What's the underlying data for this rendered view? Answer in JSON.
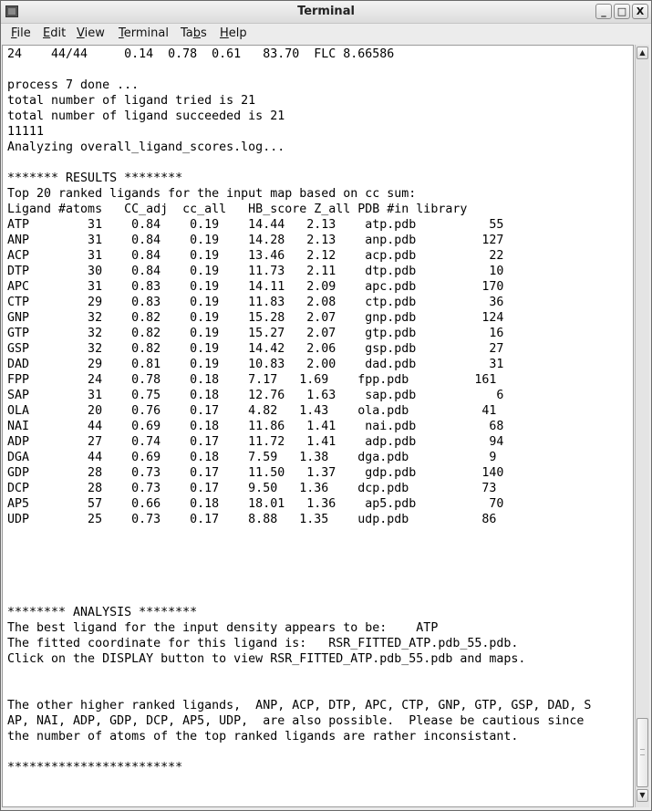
{
  "window": {
    "title": "Terminal",
    "controls": {
      "minimize": "_",
      "maximize": "□",
      "close": "X"
    }
  },
  "menu": {
    "items": [
      {
        "label": "File",
        "mnemonic": "F",
        "rest": "ile"
      },
      {
        "label": "Edit",
        "mnemonic": "E",
        "rest": "dit"
      },
      {
        "label": "View",
        "mnemonic": "V",
        "rest": "iew"
      },
      {
        "label": "Terminal",
        "mnemonic": "T",
        "rest": "erminal"
      },
      {
        "label": "Tabs",
        "pre": "Ta",
        "mnemonic": "b",
        "rest": "s"
      },
      {
        "label": "Help",
        "mnemonic": "H",
        "rest": "elp"
      }
    ]
  },
  "terminal": {
    "lines": [
      "24    44/44     0.14  0.78  0.61   83.70  FLC 8.66586",
      "",
      "process 7 done ...",
      "total number of ligand tried is 21",
      "total number of ligand succeeded is 21",
      "11111",
      "Analyzing overall_ligand_scores.log...",
      "",
      "******* RESULTS ********",
      "Top 20 ranked ligands for the input map based on cc sum:",
      "Ligand #atoms   CC_adj  cc_all   HB_score Z_all PDB #in library",
      "ATP        31    0.84    0.19    14.44   2.13    atp.pdb          55",
      "ANP        31    0.84    0.19    14.28   2.13    anp.pdb         127",
      "ACP        31    0.84    0.19    13.46   2.12    acp.pdb          22",
      "DTP        30    0.84    0.19    11.73   2.11    dtp.pdb          10",
      "APC        31    0.83    0.19    14.11   2.09    apc.pdb         170",
      "CTP        29    0.83    0.19    11.83   2.08    ctp.pdb          36",
      "GNP        32    0.82    0.19    15.28   2.07    gnp.pdb         124",
      "GTP        32    0.82    0.19    15.27   2.07    gtp.pdb          16",
      "GSP        32    0.82    0.19    14.42   2.06    gsp.pdb          27",
      "DAD        29    0.81    0.19    10.83   2.00    dad.pdb          31",
      "FPP        24    0.78    0.18    7.17   1.69    fpp.pdb         161",
      "SAP        31    0.75    0.18    12.76   1.63    sap.pdb           6",
      "OLA        20    0.76    0.17    4.82   1.43    ola.pdb          41",
      "NAI        44    0.69    0.18    11.86   1.41    nai.pdb          68",
      "ADP        27    0.74    0.17    11.72   1.41    adp.pdb          94",
      "DGA        44    0.69    0.18    7.59   1.38    dga.pdb           9",
      "GDP        28    0.73    0.17    11.50   1.37    gdp.pdb         140",
      "DCP        28    0.73    0.17    9.50   1.36    dcp.pdb          73",
      "AP5        57    0.66    0.18    18.01   1.36    ap5.pdb          70",
      "UDP        25    0.73    0.17    8.88   1.35    udp.pdb          86",
      "",
      "",
      "",
      "",
      "",
      "******** ANALYSIS ********",
      "The best ligand for the input density appears to be:    ATP",
      "The fitted coordinate for this ligand is:   RSR_FITTED_ATP.pdb_55.pdb.",
      "Click on the DISPLAY button to view RSR_FITTED_ATP.pdb_55.pdb and maps.",
      "",
      "",
      "The other higher ranked ligands,  ANP, ACP, DTP, APC, CTP, GNP, GTP, GSP, DAD, S",
      "AP, NAI, ADP, GDP, DCP, AP5, UDP,  are also possible.  Please be cautious since",
      "the number of atoms of the top ranked ligands are rather inconsistant.",
      "",
      "************************"
    ]
  },
  "scrollbar": {
    "position_fraction": 0.93,
    "up_icon": "arrow-up",
    "down_icon": "arrow-down"
  }
}
